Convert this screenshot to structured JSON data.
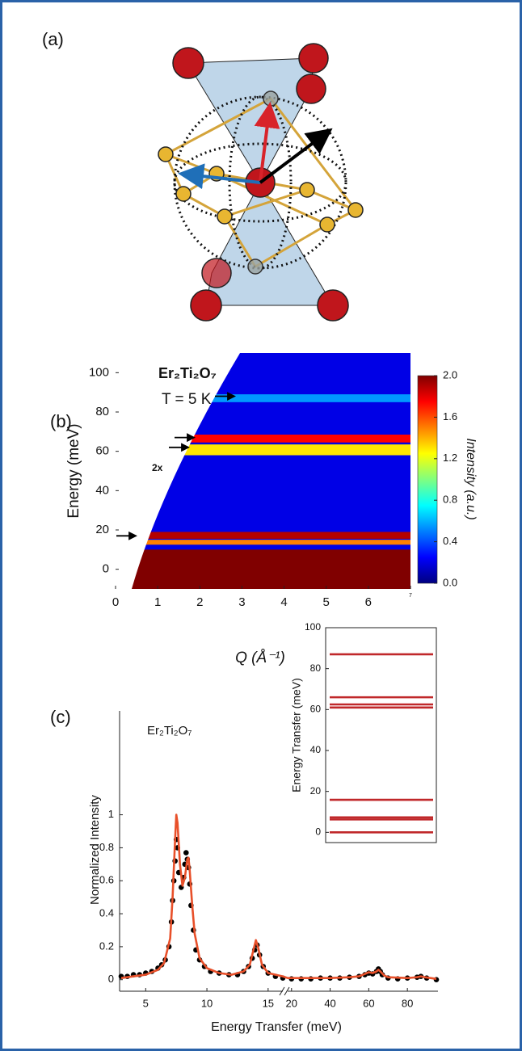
{
  "panel_labels": [
    "(a)",
    "(b)",
    "(c)"
  ],
  "chart_data": [
    {
      "type": "heatmap",
      "title": "Er₂Ti₂O₇",
      "annotations": [
        "T = 5 K",
        "2x"
      ],
      "xlabel": "Q (Å⁻¹)",
      "ylabel": "Energy (meV)",
      "xlim": [
        0,
        7
      ],
      "ylim": [
        -10,
        110
      ],
      "xticks": [
        0,
        1,
        2,
        3,
        4,
        5,
        6,
        7
      ],
      "yticks": [
        0,
        20,
        40,
        60,
        80,
        100
      ],
      "clim": [
        0,
        2
      ],
      "cticks": [
        {
          "value": 0,
          "label": "0.0"
        },
        {
          "value": 0.4,
          "label": "0.4"
        },
        {
          "value": 0.8,
          "label": "0.8"
        },
        {
          "value": 1.2,
          "label": "1.2"
        },
        {
          "value": 1.6,
          "label": "1.6"
        },
        {
          "value": 2,
          "label": "2.0"
        }
      ],
      "colorbar_label": "Intensity (a.u.)",
      "background_intensity": 0.2,
      "bands": [
        {
          "from": -10,
          "to": 10,
          "intensity": 2.0
        },
        {
          "from": 12.5,
          "to": 15,
          "intensity": 1.5
        },
        {
          "from": 15.5,
          "to": 19,
          "intensity": 1.9
        },
        {
          "from": 58,
          "to": 63.5,
          "intensity": 1.3
        },
        {
          "from": 64.5,
          "to": 68.5,
          "intensity": 1.75
        },
        {
          "from": 85,
          "to": 89,
          "intensity": 0.55
        }
      ],
      "arrows": [
        88,
        67,
        62,
        17
      ]
    },
    {
      "type": "line",
      "title": "Er₂Ti₂O₇",
      "xlabel": "Energy Transfer (meV)",
      "ylabel": "Normalized Intensity",
      "xlim": [
        3,
        95
      ],
      "x_break": [
        16.2,
        18
      ],
      "xticks": [
        5,
        10,
        15,
        20,
        40,
        60,
        80
      ],
      "ylim": [
        -0.07,
        1.63
      ],
      "yticks": [
        0,
        0.2,
        0.4,
        0.6,
        0.8,
        1
      ],
      "series": [
        {
          "color": "#000000",
          "marker": "dot",
          "x": [
            3,
            3.5,
            4,
            4.5,
            5,
            5.5,
            6,
            6.3,
            6.6,
            6.9,
            7.1,
            7.2,
            7.3,
            7.4,
            7.5,
            7.6,
            7.7,
            7.9,
            8.1,
            8.2,
            8.3,
            8.4,
            8.5,
            8.6,
            8.7,
            8.9,
            9.1,
            9.4,
            9.8,
            10.3,
            11,
            11.8,
            12.5,
            13,
            13.4,
            13.7,
            13.9,
            14.1,
            14.3,
            14.6,
            15,
            15.6,
            16.2,
            20,
            25,
            30,
            35,
            40,
            45,
            50,
            55,
            58,
            60,
            62,
            64,
            65,
            66,
            67,
            70,
            75,
            80,
            85,
            87,
            90,
            95
          ],
          "values": [
            0.02,
            0.02,
            0.03,
            0.03,
            0.04,
            0.05,
            0.07,
            0.09,
            0.12,
            0.2,
            0.35,
            0.48,
            0.6,
            0.72,
            0.85,
            0.8,
            0.65,
            0.56,
            0.62,
            0.7,
            0.77,
            0.73,
            0.68,
            0.58,
            0.45,
            0.3,
            0.18,
            0.12,
            0.08,
            0.05,
            0.04,
            0.03,
            0.03,
            0.05,
            0.08,
            0.13,
            0.18,
            0.21,
            0.15,
            0.08,
            0.04,
            0.02,
            0.01,
            0.005,
            0.005,
            0.005,
            0.01,
            0.01,
            0.01,
            0.015,
            0.02,
            0.03,
            0.04,
            0.035,
            0.05,
            0.065,
            0.05,
            0.03,
            0.01,
            0.005,
            0.01,
            0.015,
            0.02,
            0.01,
            0
          ]
        },
        {
          "color": "#e8502a",
          "x": [
            3,
            4,
            5,
            6,
            6.5,
            7,
            7.2,
            7.4,
            7.5,
            7.6,
            7.8,
            8,
            8.2,
            8.4,
            8.5,
            8.6,
            8.8,
            9,
            9.4,
            10,
            11,
            12,
            13,
            13.5,
            13.8,
            14,
            14.2,
            14.5,
            15,
            16.2,
            18,
            20,
            30,
            40,
            50,
            55,
            58,
            60,
            62,
            64,
            65,
            66,
            68,
            70,
            80,
            85,
            87,
            89,
            95
          ],
          "values": [
            0.01,
            0.02,
            0.03,
            0.06,
            0.1,
            0.25,
            0.5,
            0.85,
            1,
            0.95,
            0.7,
            0.57,
            0.62,
            0.73,
            0.74,
            0.66,
            0.45,
            0.28,
            0.13,
            0.07,
            0.04,
            0.03,
            0.05,
            0.09,
            0.18,
            0.24,
            0.19,
            0.09,
            0.04,
            0.02,
            0.01,
            0.01,
            0.01,
            0.01,
            0.015,
            0.02,
            0.035,
            0.045,
            0.04,
            0.05,
            0.06,
            0.05,
            0.025,
            0.015,
            0.01,
            0.015,
            0.02,
            0.015,
            0.005
          ]
        }
      ]
    },
    {
      "type": "levels",
      "ylabel": "Energy Transfer (meV)",
      "ylim": [
        -5,
        100
      ],
      "yticks": [
        0,
        20,
        40,
        60,
        80,
        100
      ],
      "values": [
        0,
        6.3,
        7.3,
        15.9,
        61,
        62.5,
        66,
        87
      ],
      "color": "#c0282a"
    }
  ]
}
